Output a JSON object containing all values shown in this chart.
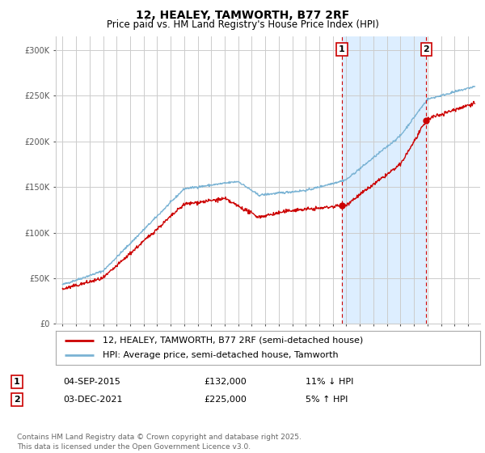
{
  "title": "12, HEALEY, TAMWORTH, B77 2RF",
  "subtitle": "Price paid vs. HM Land Registry's House Price Index (HPI)",
  "ylabel_ticks": [
    "£0",
    "£50K",
    "£100K",
    "£150K",
    "£200K",
    "£250K",
    "£300K"
  ],
  "ytick_values": [
    0,
    50000,
    100000,
    150000,
    200000,
    250000,
    300000
  ],
  "ylim": [
    0,
    315000
  ],
  "xlim_start": 1994.5,
  "xlim_end": 2025.9,
  "transaction1": {
    "date": "04-SEP-2015",
    "price": 132000,
    "hpi_diff": "11% ↓ HPI",
    "label": "1",
    "x": 2015.67
  },
  "transaction2": {
    "date": "03-DEC-2021",
    "price": 225000,
    "hpi_diff": "5% ↑ HPI",
    "label": "2",
    "x": 2021.92
  },
  "legend_line1": "12, HEALEY, TAMWORTH, B77 2RF (semi-detached house)",
  "legend_line2": "HPI: Average price, semi-detached house, Tamworth",
  "footer": "Contains HM Land Registry data © Crown copyright and database right 2025.\nThis data is licensed under the Open Government Licence v3.0.",
  "line_color_red": "#cc0000",
  "line_color_blue": "#7ab3d4",
  "shaded_region_color": "#ddeeff",
  "vline_color": "#cc0000",
  "grid_color": "#cccccc",
  "background_color": "#ffffff",
  "title_fontsize": 10,
  "subtitle_fontsize": 8.5,
  "tick_fontsize": 7,
  "legend_fontsize": 8,
  "footer_fontsize": 6.5
}
